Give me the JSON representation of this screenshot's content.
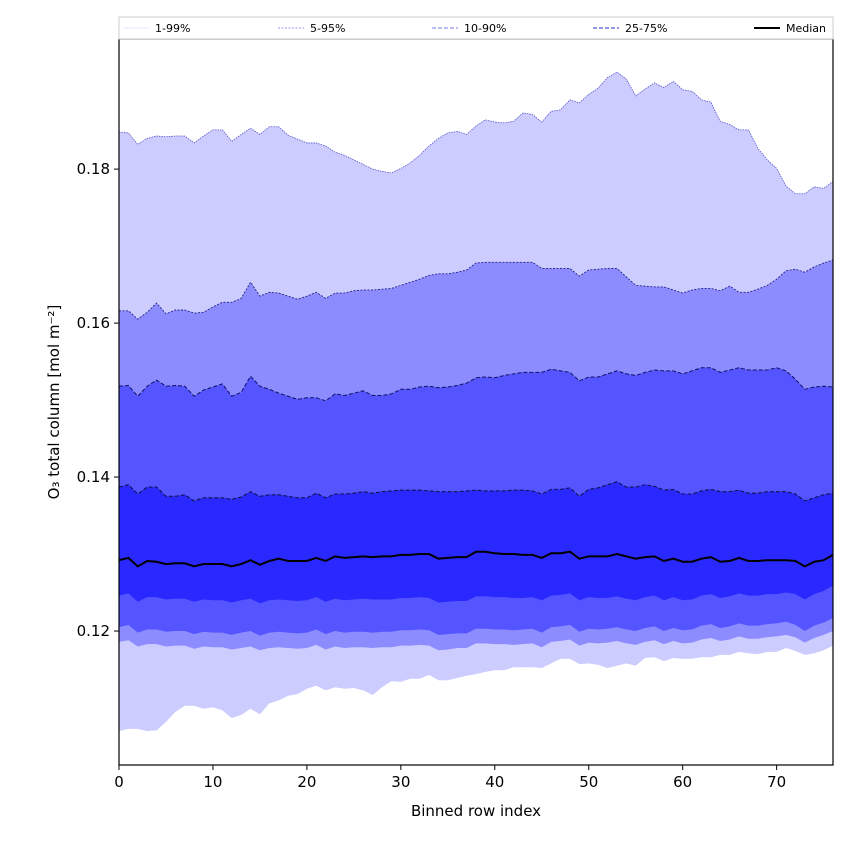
{
  "chart_data": {
    "type": "area",
    "title": "",
    "xlabel": "Binned row index",
    "ylabel": "O₃ total column [mol m⁻²]",
    "xlim": [
      0,
      76
    ],
    "ylim": [
      0.1026,
      0.1969
    ],
    "xticks": [
      0,
      10,
      20,
      30,
      40,
      50,
      60,
      70
    ],
    "xtick_labels": [
      "0",
      "10",
      "20",
      "30",
      "40",
      "50",
      "60",
      "70"
    ],
    "yticks": [
      0.12,
      0.14,
      0.16,
      0.18
    ],
    "ytick_labels": [
      "0.12",
      "0.14",
      "0.16",
      "0.18"
    ],
    "grid": false,
    "legend_position": "top",
    "legend": [
      {
        "label": "1-99%",
        "color": "#ccccff",
        "style": "solid"
      },
      {
        "label": "5-95%",
        "color": "#9999ee",
        "style": "dotted"
      },
      {
        "label": "10-90%",
        "color": "#7777ee",
        "style": "dashed"
      },
      {
        "label": "25-75%",
        "color": "#5555dd",
        "style": "dashed"
      },
      {
        "label": "Median",
        "color": "#000000",
        "style": "solid"
      }
    ],
    "band_colors": {
      "1-99%": "#ccccff",
      "5-95%": "#8c8cff",
      "10-90%": "#5555ff",
      "25-75%": "#2929ff"
    },
    "x": [
      0,
      1,
      2,
      3,
      4,
      5,
      6,
      7,
      8,
      9,
      10,
      11,
      12,
      13,
      14,
      15,
      16,
      17,
      18,
      19,
      20,
      21,
      22,
      23,
      24,
      25,
      26,
      27,
      28,
      29,
      30,
      31,
      32,
      33,
      34,
      35,
      36,
      37,
      38,
      39,
      40,
      41,
      42,
      43,
      44,
      45,
      46,
      47,
      48,
      49,
      50,
      51,
      52,
      53,
      54,
      55,
      56,
      57,
      58,
      59,
      60,
      61,
      62,
      63,
      64,
      65,
      66,
      67,
      68,
      69,
      70,
      71,
      72,
      73,
      74,
      75,
      76
    ],
    "series": [
      {
        "name": "p99",
        "values": [
          0.1848,
          0.1847,
          0.1832,
          0.184,
          0.1843,
          0.1842,
          0.1843,
          0.1843,
          0.1834,
          0.1843,
          0.1851,
          0.1851,
          0.1836,
          0.1845,
          0.1853,
          0.1845,
          0.1855,
          0.1855,
          0.1844,
          0.1839,
          0.1834,
          0.1834,
          0.183,
          0.1822,
          0.1818,
          0.1812,
          0.1806,
          0.18,
          0.1797,
          0.1795,
          0.1801,
          0.1808,
          0.1818,
          0.183,
          0.184,
          0.1847,
          0.1849,
          0.1845,
          0.1856,
          0.1864,
          0.1861,
          0.186,
          0.1862,
          0.1873,
          0.1871,
          0.1861,
          0.1875,
          0.1877,
          0.189,
          0.1886,
          0.1897,
          0.1905,
          0.1919,
          0.1926,
          0.1917,
          0.1895,
          0.1904,
          0.1912,
          0.1906,
          0.1914,
          0.1903,
          0.1901,
          0.189,
          0.1887,
          0.1862,
          0.1858,
          0.1851,
          0.1851,
          0.1827,
          0.1812,
          0.1801,
          0.1778,
          0.1768,
          0.1768,
          0.1777,
          0.1775,
          0.1784
        ]
      },
      {
        "name": "p95",
        "values": [
          0.1616,
          0.1616,
          0.1605,
          0.1614,
          0.1626,
          0.1612,
          0.1617,
          0.1617,
          0.1613,
          0.1614,
          0.1621,
          0.1627,
          0.1627,
          0.1632,
          0.1653,
          0.1635,
          0.164,
          0.1639,
          0.1635,
          0.1631,
          0.1635,
          0.164,
          0.1632,
          0.1639,
          0.1639,
          0.1642,
          0.1643,
          0.1643,
          0.1644,
          0.1645,
          0.1649,
          0.1653,
          0.1657,
          0.1662,
          0.1664,
          0.1664,
          0.1666,
          0.1669,
          0.1678,
          0.1679,
          0.1679,
          0.1679,
          0.1679,
          0.1679,
          0.1679,
          0.1671,
          0.1671,
          0.1671,
          0.1671,
          0.1661,
          0.1669,
          0.167,
          0.1671,
          0.1671,
          0.166,
          0.1649,
          0.1648,
          0.1647,
          0.1647,
          0.1643,
          0.1639,
          0.1643,
          0.1645,
          0.1645,
          0.1642,
          0.1648,
          0.164,
          0.164,
          0.1644,
          0.1649,
          0.1657,
          0.1668,
          0.167,
          0.1666,
          0.1673,
          0.1678,
          0.1682
        ]
      },
      {
        "name": "p90",
        "values": [
          0.1518,
          0.1519,
          0.1505,
          0.1518,
          0.1526,
          0.1518,
          0.1519,
          0.1518,
          0.1505,
          0.1513,
          0.1517,
          0.1521,
          0.1505,
          0.151,
          0.1531,
          0.1518,
          0.1514,
          0.1509,
          0.1505,
          0.1501,
          0.1503,
          0.1503,
          0.1499,
          0.1508,
          0.1506,
          0.1509,
          0.1512,
          0.1506,
          0.1506,
          0.1508,
          0.1514,
          0.1514,
          0.1517,
          0.1518,
          0.1516,
          0.1517,
          0.1519,
          0.1522,
          0.1529,
          0.153,
          0.1529,
          0.1532,
          0.1534,
          0.1536,
          0.1536,
          0.1536,
          0.154,
          0.1538,
          0.1536,
          0.1525,
          0.153,
          0.153,
          0.1534,
          0.1538,
          0.1534,
          0.1532,
          0.1536,
          0.1539,
          0.1538,
          0.1538,
          0.1534,
          0.1538,
          0.1542,
          0.1542,
          0.1536,
          0.1539,
          0.1542,
          0.1539,
          0.1539,
          0.1539,
          0.1542,
          0.1538,
          0.1527,
          0.1514,
          0.1517,
          0.1518,
          0.1517
        ]
      },
      {
        "name": "p75",
        "values": [
          0.1387,
          0.139,
          0.1378,
          0.1387,
          0.1387,
          0.1375,
          0.1375,
          0.1377,
          0.1369,
          0.1373,
          0.1373,
          0.1373,
          0.1371,
          0.1374,
          0.1381,
          0.1375,
          0.1377,
          0.1377,
          0.1375,
          0.1373,
          0.1373,
          0.1379,
          0.1373,
          0.1378,
          0.1378,
          0.1379,
          0.1381,
          0.1379,
          0.1381,
          0.1382,
          0.1383,
          0.1383,
          0.1383,
          0.1382,
          0.1381,
          0.1381,
          0.1381,
          0.1382,
          0.1383,
          0.1382,
          0.1382,
          0.1382,
          0.1383,
          0.1383,
          0.1382,
          0.1378,
          0.1384,
          0.1384,
          0.1386,
          0.1375,
          0.1384,
          0.1386,
          0.139,
          0.1394,
          0.1387,
          0.1387,
          0.139,
          0.1388,
          0.1383,
          0.1384,
          0.1378,
          0.1378,
          0.1382,
          0.1384,
          0.1381,
          0.1381,
          0.1383,
          0.1379,
          0.1379,
          0.1381,
          0.1381,
          0.1381,
          0.1378,
          0.1369,
          0.1373,
          0.1377,
          0.1379
        ]
      },
      {
        "name": "median",
        "values": [
          0.1292,
          0.1295,
          0.1284,
          0.1291,
          0.129,
          0.1287,
          0.1288,
          0.1288,
          0.1284,
          0.1287,
          0.1287,
          0.1287,
          0.1284,
          0.1287,
          0.1292,
          0.1286,
          0.1291,
          0.1294,
          0.1291,
          0.1291,
          0.1291,
          0.1295,
          0.1291,
          0.1297,
          0.1295,
          0.1296,
          0.1297,
          0.1296,
          0.1297,
          0.1297,
          0.1299,
          0.1299,
          0.13,
          0.13,
          0.1294,
          0.1295,
          0.1296,
          0.1296,
          0.1303,
          0.1303,
          0.1301,
          0.13,
          0.13,
          0.1299,
          0.1299,
          0.1295,
          0.1301,
          0.1301,
          0.1303,
          0.1294,
          0.1297,
          0.1297,
          0.1297,
          0.13,
          0.1297,
          0.1294,
          0.1296,
          0.1297,
          0.1291,
          0.1294,
          0.129,
          0.129,
          0.1294,
          0.1296,
          0.129,
          0.1291,
          0.1295,
          0.1291,
          0.1291,
          0.1292,
          0.1292,
          0.1292,
          0.1291,
          0.1284,
          0.129,
          0.1292,
          0.1299
        ]
      },
      {
        "name": "p25",
        "values": [
          0.1246,
          0.1249,
          0.1238,
          0.1244,
          0.1244,
          0.1241,
          0.1242,
          0.1242,
          0.1238,
          0.1241,
          0.124,
          0.124,
          0.1237,
          0.124,
          0.1242,
          0.1236,
          0.124,
          0.1241,
          0.124,
          0.1239,
          0.124,
          0.1244,
          0.1238,
          0.1242,
          0.124,
          0.1241,
          0.1242,
          0.1241,
          0.1241,
          0.1241,
          0.1243,
          0.1243,
          0.1244,
          0.1243,
          0.1237,
          0.1238,
          0.1239,
          0.1239,
          0.1245,
          0.1245,
          0.1244,
          0.1244,
          0.1243,
          0.1243,
          0.1244,
          0.124,
          0.1246,
          0.1247,
          0.1249,
          0.124,
          0.1244,
          0.1243,
          0.1243,
          0.1245,
          0.1242,
          0.124,
          0.1244,
          0.1246,
          0.124,
          0.1244,
          0.124,
          0.1241,
          0.1246,
          0.1248,
          0.1243,
          0.1245,
          0.1249,
          0.1246,
          0.1246,
          0.1248,
          0.1248,
          0.125,
          0.1248,
          0.1241,
          0.1248,
          0.1252,
          0.1259
        ]
      },
      {
        "name": "p10",
        "values": [
          0.1205,
          0.1208,
          0.1198,
          0.1202,
          0.1202,
          0.1199,
          0.12,
          0.12,
          0.1196,
          0.1199,
          0.1198,
          0.1198,
          0.1195,
          0.1198,
          0.12,
          0.1194,
          0.1198,
          0.1199,
          0.1198,
          0.1197,
          0.1198,
          0.1202,
          0.1196,
          0.12,
          0.1198,
          0.1199,
          0.1199,
          0.1198,
          0.1199,
          0.1199,
          0.1201,
          0.1201,
          0.1202,
          0.1201,
          0.1195,
          0.1196,
          0.1197,
          0.1197,
          0.1203,
          0.1203,
          0.1202,
          0.1202,
          0.1201,
          0.1202,
          0.1203,
          0.1198,
          0.1205,
          0.1206,
          0.1208,
          0.1199,
          0.1203,
          0.1202,
          0.1203,
          0.1205,
          0.1202,
          0.12,
          0.1204,
          0.1206,
          0.12,
          0.1204,
          0.1201,
          0.1202,
          0.1207,
          0.1209,
          0.1204,
          0.1206,
          0.121,
          0.1207,
          0.1207,
          0.1209,
          0.121,
          0.1212,
          0.1208,
          0.12,
          0.1207,
          0.1211,
          0.1217
        ]
      },
      {
        "name": "p5",
        "values": [
          0.1186,
          0.1188,
          0.118,
          0.1183,
          0.1183,
          0.118,
          0.1181,
          0.1181,
          0.1177,
          0.118,
          0.1179,
          0.1179,
          0.1176,
          0.1178,
          0.118,
          0.1175,
          0.1178,
          0.1179,
          0.1178,
          0.1177,
          0.1178,
          0.1182,
          0.1176,
          0.118,
          0.1178,
          0.1179,
          0.1179,
          0.1178,
          0.1179,
          0.1179,
          0.1181,
          0.1181,
          0.1182,
          0.1181,
          0.1175,
          0.1176,
          0.1178,
          0.1178,
          0.1184,
          0.1184,
          0.1183,
          0.1183,
          0.1182,
          0.1183,
          0.1184,
          0.1179,
          0.1186,
          0.1187,
          0.1189,
          0.1181,
          0.1185,
          0.1184,
          0.1185,
          0.1187,
          0.1184,
          0.1182,
          0.1186,
          0.1188,
          0.1183,
          0.1187,
          0.1184,
          0.1185,
          0.1189,
          0.1191,
          0.1187,
          0.1189,
          0.1193,
          0.119,
          0.119,
          0.1192,
          0.1193,
          0.1195,
          0.1192,
          0.1185,
          0.1191,
          0.1195,
          0.12
        ]
      },
      {
        "name": "p1",
        "values": [
          0.107,
          0.1073,
          0.1073,
          0.107,
          0.1071,
          0.1082,
          0.1095,
          0.1103,
          0.1103,
          0.1099,
          0.1101,
          0.1097,
          0.1087,
          0.1091,
          0.1099,
          0.1092,
          0.1106,
          0.111,
          0.1116,
          0.1118,
          0.1125,
          0.1129,
          0.1123,
          0.1127,
          0.1125,
          0.1126,
          0.1123,
          0.1117,
          0.1127,
          0.1135,
          0.1134,
          0.1138,
          0.1138,
          0.1143,
          0.1136,
          0.1136,
          0.1139,
          0.1142,
          0.1144,
          0.1147,
          0.1149,
          0.1149,
          0.1153,
          0.1153,
          0.1153,
          0.1152,
          0.1158,
          0.1164,
          0.1164,
          0.1157,
          0.1158,
          0.1156,
          0.1152,
          0.1155,
          0.1158,
          0.1155,
          0.1165,
          0.1166,
          0.1161,
          0.1165,
          0.1164,
          0.1164,
          0.1166,
          0.1166,
          0.1169,
          0.1169,
          0.1173,
          0.1171,
          0.117,
          0.1173,
          0.1173,
          0.1178,
          0.1174,
          0.1169,
          0.1171,
          0.1175,
          0.1181
        ]
      }
    ]
  }
}
